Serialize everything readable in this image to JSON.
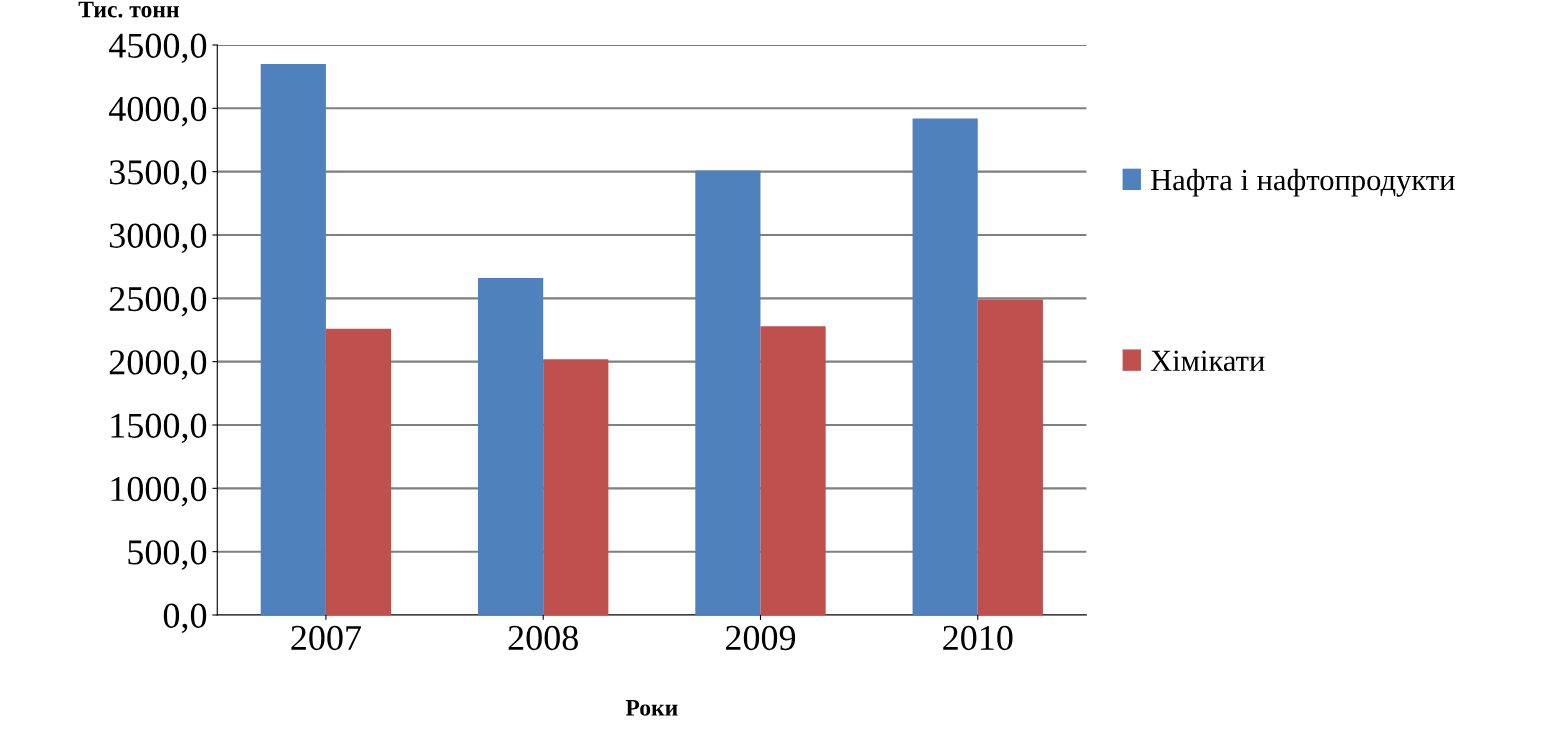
{
  "chart_data": {
    "type": "bar",
    "ylabel": "Тис. тонн",
    "xlabel": "Роки",
    "categories": [
      "2007",
      "2008",
      "2009",
      "2010"
    ],
    "series": [
      {
        "name": "Нафта і нафтопродукти",
        "color": "#4f81bd",
        "values": [
          4350,
          2660,
          3510,
          3920
        ]
      },
      {
        "name": "Хімікати",
        "color": "#c0504d",
        "values": [
          2260,
          2020,
          2280,
          2490
        ]
      }
    ],
    "ylim": [
      0,
      4500
    ],
    "yticks": [
      {
        "value": 0,
        "label": "0,0"
      },
      {
        "value": 500,
        "label": "500,0"
      },
      {
        "value": 1000,
        "label": "1000,0"
      },
      {
        "value": 1500,
        "label": "1500,0"
      },
      {
        "value": 2000,
        "label": "2000,0"
      },
      {
        "value": 2500,
        "label": "2500,0"
      },
      {
        "value": 3000,
        "label": "3000,0"
      },
      {
        "value": 3500,
        "label": "3500,0"
      },
      {
        "value": 4000,
        "label": "4000,0"
      },
      {
        "value": 4500,
        "label": "4500,0"
      }
    ],
    "grid": "y",
    "legend": "right"
  }
}
